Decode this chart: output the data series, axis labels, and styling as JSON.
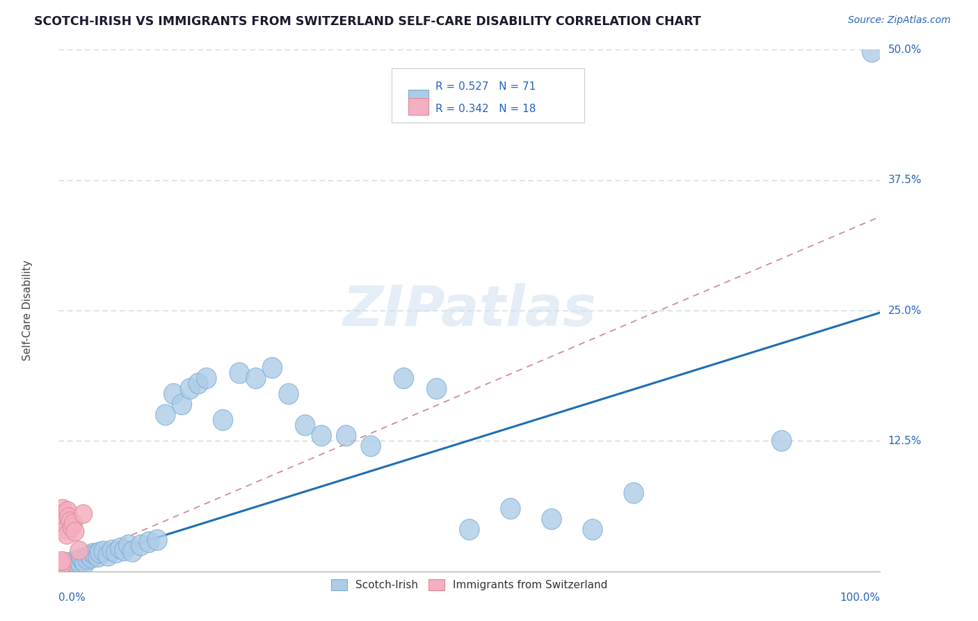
{
  "title": "SCOTCH-IRISH VS IMMIGRANTS FROM SWITZERLAND SELF-CARE DISABILITY CORRELATION CHART",
  "source_text": "Source: ZipAtlas.com",
  "ylabel": "Self-Care Disability",
  "xlim": [
    0,
    1.0
  ],
  "ylim": [
    0,
    0.5
  ],
  "legend_r1": "R = 0.527",
  "legend_n1": "N = 71",
  "legend_r2": "R = 0.342",
  "legend_n2": "N = 18",
  "color_blue": "#aecce8",
  "color_pink": "#f4afc0",
  "edge_blue": "#7aaad0",
  "edge_pink": "#e08898",
  "line_blue": "#1e6db5",
  "line_dash": "#d4899a",
  "text_blue": "#2563c0",
  "text_dark": "#1a1a2e",
  "grid_color": "#c8d4e4",
  "bg_color": "#ffffff",
  "si_line_m": 0.245,
  "si_line_b": 0.003,
  "sw_line_m": 0.335,
  "sw_line_b": 0.005,
  "scotch_irish_x": [
    0.002,
    0.003,
    0.004,
    0.005,
    0.006,
    0.007,
    0.008,
    0.008,
    0.009,
    0.009,
    0.01,
    0.011,
    0.012,
    0.013,
    0.014,
    0.015,
    0.016,
    0.017,
    0.018,
    0.019,
    0.02,
    0.021,
    0.022,
    0.023,
    0.025,
    0.026,
    0.028,
    0.03,
    0.032,
    0.035,
    0.038,
    0.04,
    0.042,
    0.045,
    0.048,
    0.05,
    0.055,
    0.06,
    0.065,
    0.07,
    0.075,
    0.08,
    0.085,
    0.09,
    0.1,
    0.11,
    0.12,
    0.13,
    0.14,
    0.15,
    0.16,
    0.17,
    0.18,
    0.2,
    0.22,
    0.24,
    0.26,
    0.28,
    0.3,
    0.32,
    0.35,
    0.38,
    0.42,
    0.46,
    0.5,
    0.55,
    0.6,
    0.65,
    0.7,
    0.88,
    0.99
  ],
  "scotch_irish_y": [
    0.005,
    0.003,
    0.004,
    0.006,
    0.002,
    0.007,
    0.004,
    0.008,
    0.005,
    0.006,
    0.003,
    0.007,
    0.005,
    0.004,
    0.006,
    0.008,
    0.005,
    0.009,
    0.006,
    0.007,
    0.008,
    0.005,
    0.009,
    0.007,
    0.01,
    0.008,
    0.012,
    0.01,
    0.008,
    0.012,
    0.015,
    0.013,
    0.017,
    0.016,
    0.014,
    0.018,
    0.019,
    0.015,
    0.02,
    0.018,
    0.022,
    0.02,
    0.025,
    0.019,
    0.025,
    0.028,
    0.03,
    0.15,
    0.17,
    0.16,
    0.175,
    0.18,
    0.185,
    0.145,
    0.19,
    0.185,
    0.195,
    0.17,
    0.14,
    0.13,
    0.13,
    0.12,
    0.185,
    0.175,
    0.04,
    0.06,
    0.05,
    0.04,
    0.075,
    0.125,
    0.498
  ],
  "swiss_x": [
    0.002,
    0.003,
    0.004,
    0.004,
    0.005,
    0.006,
    0.007,
    0.008,
    0.009,
    0.01,
    0.011,
    0.012,
    0.014,
    0.016,
    0.018,
    0.02,
    0.025,
    0.03
  ],
  "swiss_y": [
    0.005,
    0.008,
    0.006,
    0.01,
    0.06,
    0.055,
    0.05,
    0.045,
    0.04,
    0.035,
    0.058,
    0.052,
    0.048,
    0.042,
    0.046,
    0.038,
    0.02,
    0.055
  ]
}
